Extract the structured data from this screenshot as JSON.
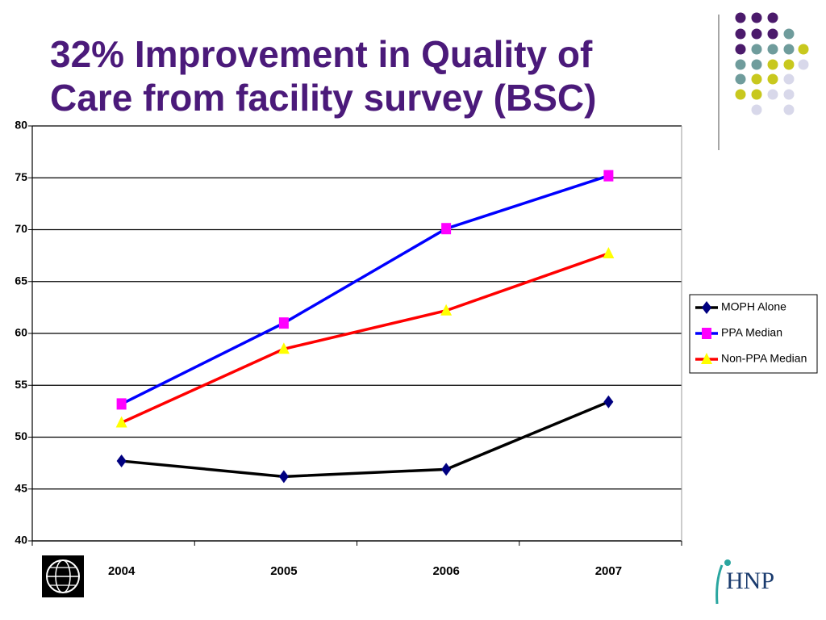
{
  "chart_data": {
    "type": "line",
    "title": "32% Improvement in Quality of Care from facility survey (BSC)",
    "categories": [
      "2004",
      "2005",
      "2006",
      "2007"
    ],
    "series": [
      {
        "name": "MOPH Alone",
        "color": "#000000",
        "marker_color": "#000080",
        "marker": "diamond",
        "values": [
          47.7,
          46.2,
          46.9,
          53.4
        ]
      },
      {
        "name": "PPA Median",
        "color": "#0000ff",
        "marker_color": "#ff00ff",
        "marker": "square",
        "values": [
          53.2,
          61.0,
          70.1,
          75.2
        ]
      },
      {
        "name": "Non-PPA Median",
        "color": "#ff0000",
        "marker_color": "#ffff00",
        "marker": "triangle",
        "values": [
          51.4,
          58.5,
          62.2,
          67.7
        ]
      }
    ],
    "ylim": [
      40,
      80
    ],
    "yticks": [
      40,
      45,
      50,
      55,
      60,
      65,
      70,
      75,
      80
    ],
    "grid": true,
    "legend": "right"
  },
  "logos": {
    "hnp": "HNP"
  }
}
